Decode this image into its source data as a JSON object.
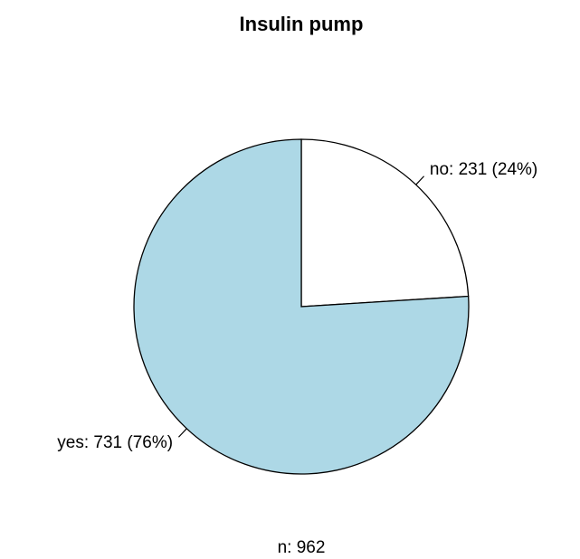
{
  "chart_data": {
    "type": "pie",
    "title": "Insulin pump",
    "categories": [
      "no",
      "yes"
    ],
    "values": [
      231,
      731
    ],
    "value_labels": [
      "no: 231 (24%)",
      "yes: 731 (76%)"
    ],
    "colors": [
      "#ffffff",
      "#add8e6"
    ],
    "footer": "n: 962"
  }
}
